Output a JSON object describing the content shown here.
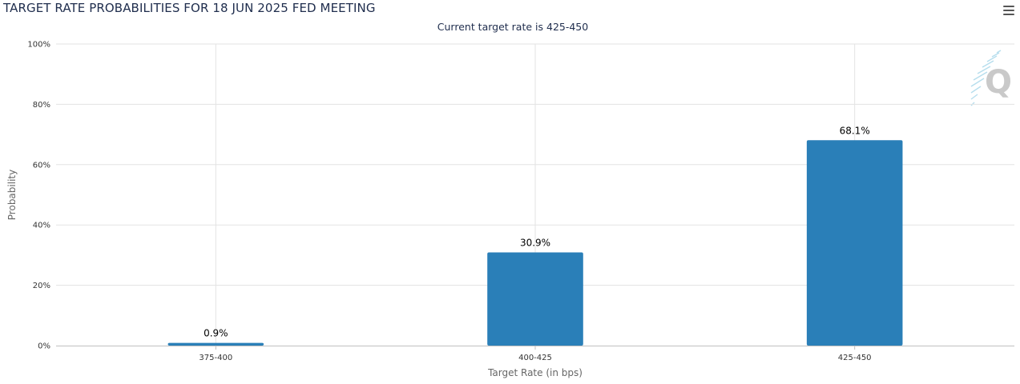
{
  "header": {
    "title": "TARGET RATE PROBABILITIES FOR 18 JUN 2025 FED MEETING",
    "subtitle": "Current target rate is 425-450",
    "menu_icon": "hamburger-menu-icon",
    "watermark_icon": "q-logo-icon"
  },
  "colors": {
    "bar": "#2a7fb8",
    "grid": "#e3e3e3",
    "axis_line": "#c0c0c0",
    "title": "#1f2d4d"
  },
  "chart_data": {
    "type": "bar",
    "title": "TARGET RATE PROBABILITIES FOR 18 JUN 2025 FED MEETING",
    "subtitle": "Current target rate is 425-450",
    "xlabel": "Target Rate (in bps)",
    "ylabel": "Probability",
    "categories": [
      "375-400",
      "400-425",
      "425-450"
    ],
    "values": [
      0.9,
      30.9,
      68.1
    ],
    "value_labels": [
      "0.9%",
      "30.9%",
      "68.1%"
    ],
    "ylim": [
      0,
      100
    ],
    "yticks": [
      0,
      20,
      40,
      60,
      80,
      100
    ],
    "ytick_labels": [
      "0%",
      "20%",
      "40%",
      "60%",
      "80%",
      "100%"
    ],
    "grid": true,
    "legend": "none"
  }
}
